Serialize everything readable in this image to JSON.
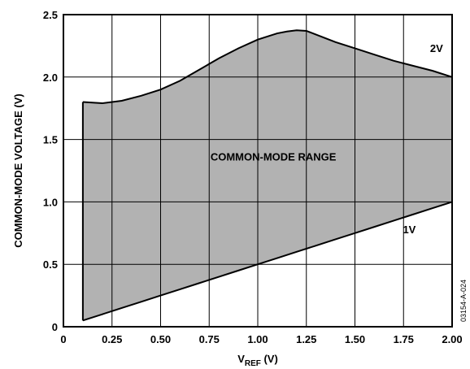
{
  "chart_data": {
    "type": "area",
    "title": "",
    "xlabel_main": "V",
    "xlabel_sub": "REF",
    "xlabel_unit": " (V)",
    "ylabel": "COMMON-MODE VOLTAGE (V)",
    "xlim": [
      0,
      2.0
    ],
    "ylim": [
      0,
      2.5
    ],
    "grid": true,
    "x_ticks": [
      0,
      0.25,
      0.5,
      0.75,
      1.0,
      1.25,
      1.5,
      1.75,
      2.0
    ],
    "x_tick_labels": [
      "0",
      "0.25",
      "0.50",
      "0.75",
      "1.00",
      "1.25",
      "1.50",
      "1.75",
      "2.00"
    ],
    "y_ticks": [
      0,
      0.5,
      1.0,
      1.5,
      2.0,
      2.5
    ],
    "y_tick_labels": [
      "0",
      "0.5",
      "1.0",
      "1.5",
      "2.0",
      "2.5"
    ],
    "upper_boundary": {
      "x": [
        0.1,
        0.15,
        0.2,
        0.3,
        0.4,
        0.5,
        0.6,
        0.7,
        0.8,
        0.9,
        1.0,
        1.1,
        1.15,
        1.2,
        1.25,
        1.3,
        1.4,
        1.5,
        1.6,
        1.7,
        1.8,
        1.9,
        2.0
      ],
      "y": [
        1.8,
        1.795,
        1.79,
        1.81,
        1.85,
        1.9,
        1.97,
        2.06,
        2.15,
        2.23,
        2.3,
        2.35,
        2.365,
        2.375,
        2.37,
        2.34,
        2.28,
        2.23,
        2.18,
        2.13,
        2.09,
        2.05,
        2.0
      ]
    },
    "lower_boundary": {
      "x": [
        0.1,
        0.2,
        0.3,
        0.4,
        0.5,
        0.6,
        0.7,
        0.8,
        0.9,
        1.0,
        1.1,
        1.2,
        1.3,
        1.4,
        1.5,
        1.6,
        1.7,
        1.8,
        1.9,
        2.0
      ],
      "y": [
        0.05,
        0.1,
        0.15,
        0.2,
        0.25,
        0.3,
        0.35,
        0.4,
        0.45,
        0.5,
        0.55,
        0.6,
        0.65,
        0.7,
        0.75,
        0.8,
        0.85,
        0.9,
        0.95,
        1.0
      ]
    },
    "fill_color": "#b2b2b2",
    "annotations": {
      "region": {
        "text": "COMMON-MODE RANGE",
        "x": 1.08,
        "y": 1.33
      },
      "upper": {
        "text": "2V",
        "x": 1.92,
        "y": 2.2
      },
      "lower": {
        "text": "1V",
        "x": 1.78,
        "y": 0.75
      }
    },
    "figure_id": "03154-A-024"
  }
}
